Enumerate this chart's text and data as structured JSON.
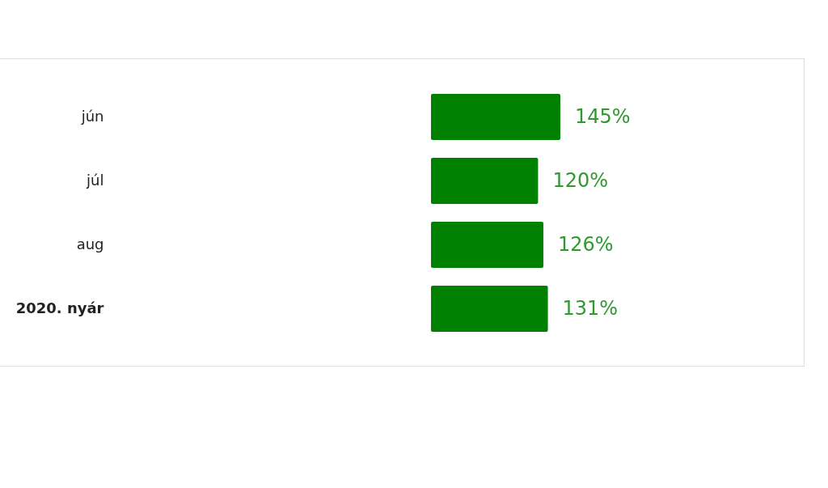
{
  "chart_data": {
    "type": "bar",
    "orientation": "horizontal",
    "categories": [
      "jún",
      "júl",
      "aug",
      "2020. nyár"
    ],
    "values": [
      145,
      120,
      126,
      131
    ],
    "value_labels": [
      "145%",
      "120%",
      "126%",
      "131%"
    ],
    "color": "#008000"
  }
}
